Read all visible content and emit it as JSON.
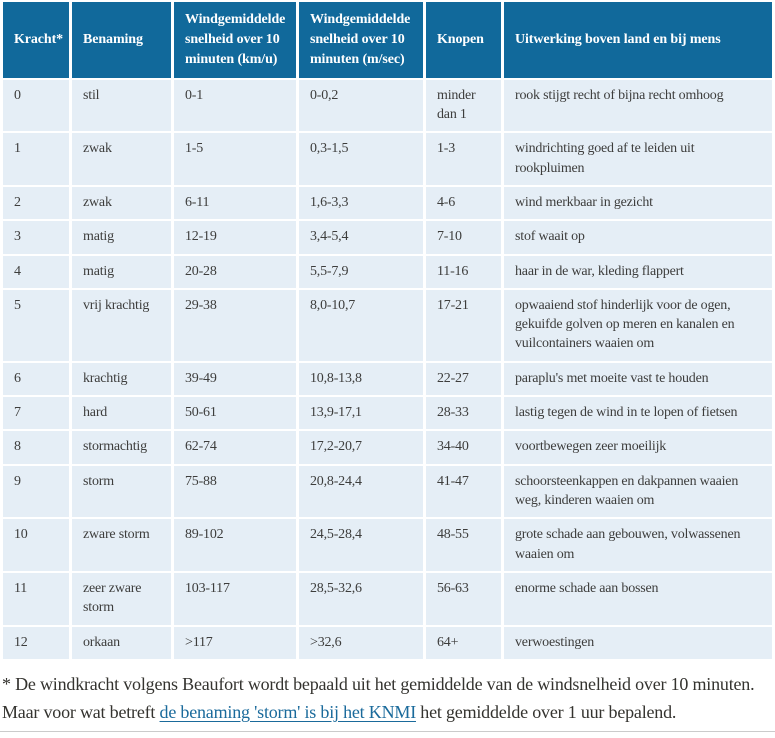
{
  "colors": {
    "header_bg": "#11699B",
    "row_bg": "#E5EEF6",
    "header_text": "#FFFFFF",
    "body_text": "#3D3D3C",
    "link": "#1A6A9B",
    "rule": "#CBCBCB"
  },
  "table": {
    "columns": [
      {
        "label": "Kracht*"
      },
      {
        "label": "Benaming"
      },
      {
        "label": "Windgemiddelde snelheid over 10 minuten (km/u)"
      },
      {
        "label": "Windgemiddelde snelheid over 10 minuten (m/sec)"
      },
      {
        "label": "Knopen"
      },
      {
        "label": "Uitwerking boven land en bij mens"
      }
    ],
    "rows": [
      [
        "0",
        "stil",
        "0-1",
        "0-0,2",
        "minder dan 1",
        "rook stijgt recht of bijna recht omhoog"
      ],
      [
        "1",
        "zwak",
        "1-5",
        "0,3-1,5",
        "1-3",
        "windrichting goed af te leiden uit rookpluimen"
      ],
      [
        "2",
        "zwak",
        "6-11",
        "1,6-3,3",
        "4-6",
        "wind merkbaar in gezicht"
      ],
      [
        "3",
        "matig",
        "12-19",
        "3,4-5,4",
        "7-10",
        "stof waait op"
      ],
      [
        "4",
        "matig",
        "20-28",
        "5,5-7,9",
        "11-16",
        "haar in de war, kleding flappert"
      ],
      [
        "5",
        "vrij krachtig",
        "29-38",
        "8,0-10,7",
        "17-21",
        "opwaaiend stof hinderlijk voor de ogen, gekuifde golven op meren en kanalen en vuilcontainers waaien om"
      ],
      [
        "6",
        "krachtig",
        "39-49",
        "10,8-13,8",
        "22-27",
        "paraplu's met moeite vast te houden"
      ],
      [
        "7",
        "hard",
        "50-61",
        "13,9-17,1",
        "28-33",
        "lastig tegen de wind in te lopen of fietsen"
      ],
      [
        "8",
        "stormachtig",
        "62-74",
        "17,2-20,7",
        "34-40",
        "voortbewegen zeer moeilijk"
      ],
      [
        "9",
        "storm",
        "75-88",
        "20,8-24,4",
        "41-47",
        "schoorsteenkappen en dakpannen waaien weg, kinderen waaien om"
      ],
      [
        "10",
        "zware storm",
        "89-102",
        "24,5-28,4",
        "48-55",
        "grote schade aan gebouwen, volwassenen waaien om"
      ],
      [
        "11",
        "zeer zware storm",
        "103-117",
        "28,5-32,6",
        "56-63",
        "enorme schade aan bossen"
      ],
      [
        "12",
        "orkaan",
        ">117",
        ">32,6",
        "64+",
        "verwoestingen"
      ]
    ]
  },
  "footnote": {
    "text_before_link": "* De windkracht volgens Beaufort wordt bepaald uit het gemiddelde van de windsnelheid over 10 minuten. Maar voor wat betreft ",
    "link_text": "de benaming 'storm' is bij het KNMI",
    "text_after_link": " het gemiddelde over 1 uur bepalend."
  }
}
